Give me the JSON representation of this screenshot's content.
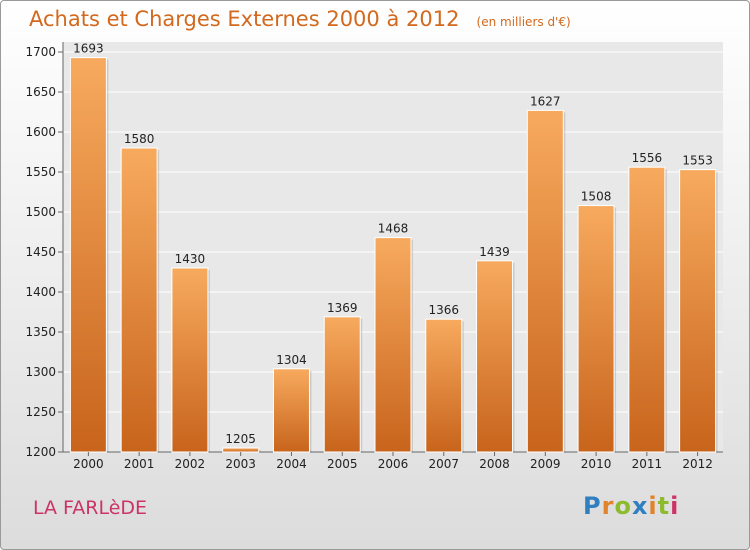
{
  "header": {
    "title": "Achats et Charges Externes 2000 à 2012",
    "unit_note": "(en milliers d'€)"
  },
  "footer": {
    "commune": "LA FARLèDE",
    "logo": "Proxiti"
  },
  "colors": {
    "bar": "#f0923a",
    "bar_light": "#f7aa5e",
    "bar_dark": "#c8641c",
    "title": "#d2691e",
    "commune": "#cc3366",
    "plot_bg": "#e8e8e8"
  },
  "chart_data": {
    "type": "bar",
    "categories": [
      "2000",
      "2001",
      "2002",
      "2003",
      "2004",
      "2005",
      "2006",
      "2007",
      "2008",
      "2009",
      "2010",
      "2011",
      "2012"
    ],
    "values": [
      1693,
      1580,
      1430,
      1205,
      1304,
      1369,
      1468,
      1366,
      1439,
      1627,
      1508,
      1556,
      1553
    ],
    "ylim": [
      1200,
      1700
    ],
    "yticks": [
      1200,
      1250,
      1300,
      1350,
      1400,
      1450,
      1500,
      1550,
      1600,
      1650,
      1700
    ],
    "grid": true,
    "legend": "none"
  }
}
